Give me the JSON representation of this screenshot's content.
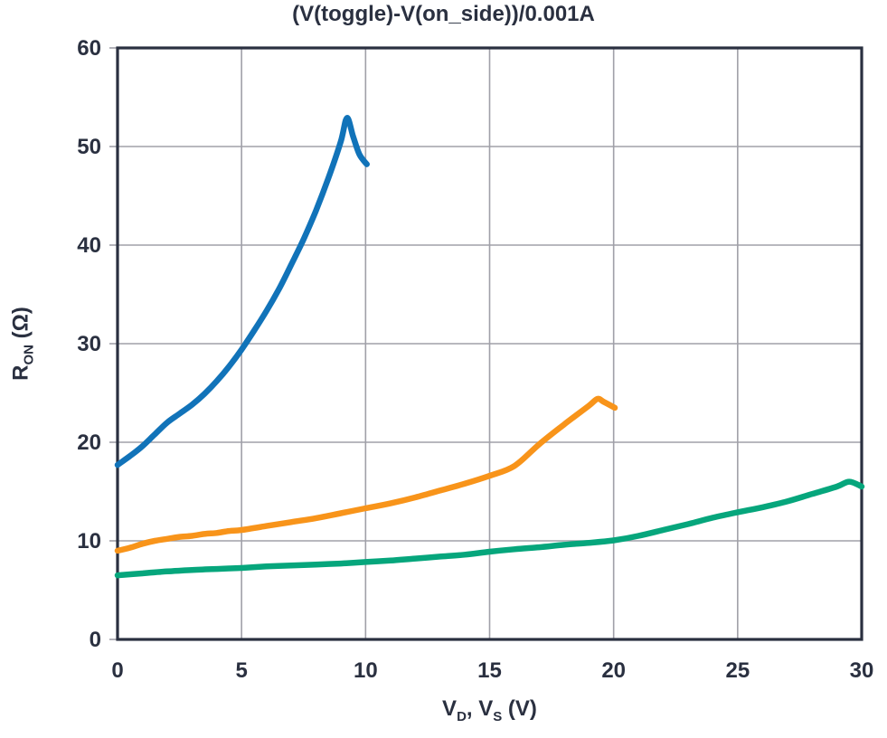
{
  "figure": {
    "background": "#ffffff",
    "text_color": "#2A3040",
    "frame_color": "#2A3040",
    "grid_color": "#A0A0A8"
  },
  "chart_data": {
    "type": "line",
    "title": "(V(toggle)-V(on_side))/0.001A",
    "xlabel": "VD, VS (V)",
    "xlabel_parts": [
      {
        "t": "V"
      },
      {
        "t": "D",
        "sub": true
      },
      {
        "t": ", V"
      },
      {
        "t": "S",
        "sub": true
      },
      {
        "t": " (V)"
      }
    ],
    "ylabel": "RON (Ω)",
    "ylabel_parts": [
      {
        "t": "R"
      },
      {
        "t": "ON",
        "sub": true
      },
      {
        "t": " (Ω)"
      }
    ],
    "xlim": [
      0,
      30
    ],
    "ylim": [
      0,
      60
    ],
    "x_ticks": [
      0,
      5,
      10,
      15,
      20,
      25,
      30
    ],
    "y_ticks": [
      0,
      10,
      20,
      30,
      40,
      50,
      60
    ],
    "grid": true,
    "legend": "none",
    "series": [
      {
        "name": "blue-curve",
        "color": "#1173B9",
        "points": [
          [
            0,
            17.7
          ],
          [
            0.5,
            18.6
          ],
          [
            1,
            19.6
          ],
          [
            1.5,
            20.8
          ],
          [
            2,
            22.0
          ],
          [
            2.5,
            22.9
          ],
          [
            3,
            23.8
          ],
          [
            3.5,
            24.9
          ],
          [
            4,
            26.2
          ],
          [
            4.5,
            27.7
          ],
          [
            5,
            29.4
          ],
          [
            5.5,
            31.3
          ],
          [
            6,
            33.3
          ],
          [
            6.5,
            35.5
          ],
          [
            7,
            38.0
          ],
          [
            7.5,
            40.6
          ],
          [
            8,
            43.5
          ],
          [
            8.5,
            46.8
          ],
          [
            9,
            50.5
          ],
          [
            9.25,
            52.9
          ],
          [
            9.5,
            51.0
          ],
          [
            9.75,
            49.2
          ],
          [
            10.05,
            48.2
          ]
        ]
      },
      {
        "name": "orange-curve",
        "color": "#F8941A",
        "points": [
          [
            0,
            9.0
          ],
          [
            0.5,
            9.3
          ],
          [
            1,
            9.7
          ],
          [
            1.5,
            10.0
          ],
          [
            2,
            10.2
          ],
          [
            2.5,
            10.4
          ],
          [
            3,
            10.5
          ],
          [
            3.5,
            10.7
          ],
          [
            4,
            10.8
          ],
          [
            4.5,
            11.0
          ],
          [
            5,
            11.1
          ],
          [
            6,
            11.5
          ],
          [
            7,
            11.9
          ],
          [
            8,
            12.3
          ],
          [
            9,
            12.8
          ],
          [
            10,
            13.3
          ],
          [
            11,
            13.8
          ],
          [
            12,
            14.4
          ],
          [
            13,
            15.1
          ],
          [
            14,
            15.8
          ],
          [
            15,
            16.6
          ],
          [
            16,
            17.6
          ],
          [
            17,
            19.8
          ],
          [
            18,
            21.8
          ],
          [
            19,
            23.7
          ],
          [
            19.35,
            24.4
          ],
          [
            19.6,
            24.1
          ],
          [
            20.05,
            23.5
          ]
        ]
      },
      {
        "name": "green-curve",
        "color": "#06A67C",
        "points": [
          [
            0,
            6.5
          ],
          [
            1,
            6.7
          ],
          [
            2,
            6.9
          ],
          [
            3,
            7.05
          ],
          [
            4,
            7.15
          ],
          [
            5,
            7.25
          ],
          [
            6,
            7.4
          ],
          [
            7,
            7.5
          ],
          [
            8,
            7.6
          ],
          [
            9,
            7.7
          ],
          [
            10,
            7.85
          ],
          [
            11,
            8.0
          ],
          [
            12,
            8.2
          ],
          [
            13,
            8.4
          ],
          [
            14,
            8.6
          ],
          [
            15,
            8.9
          ],
          [
            16,
            9.15
          ],
          [
            17,
            9.35
          ],
          [
            18,
            9.6
          ],
          [
            19,
            9.8
          ],
          [
            20,
            10.05
          ],
          [
            21,
            10.5
          ],
          [
            22,
            11.1
          ],
          [
            23,
            11.7
          ],
          [
            24,
            12.35
          ],
          [
            25,
            12.9
          ],
          [
            26,
            13.4
          ],
          [
            27,
            14.0
          ],
          [
            28,
            14.75
          ],
          [
            29,
            15.5
          ],
          [
            29.5,
            16.0
          ],
          [
            30,
            15.5
          ]
        ]
      }
    ]
  }
}
